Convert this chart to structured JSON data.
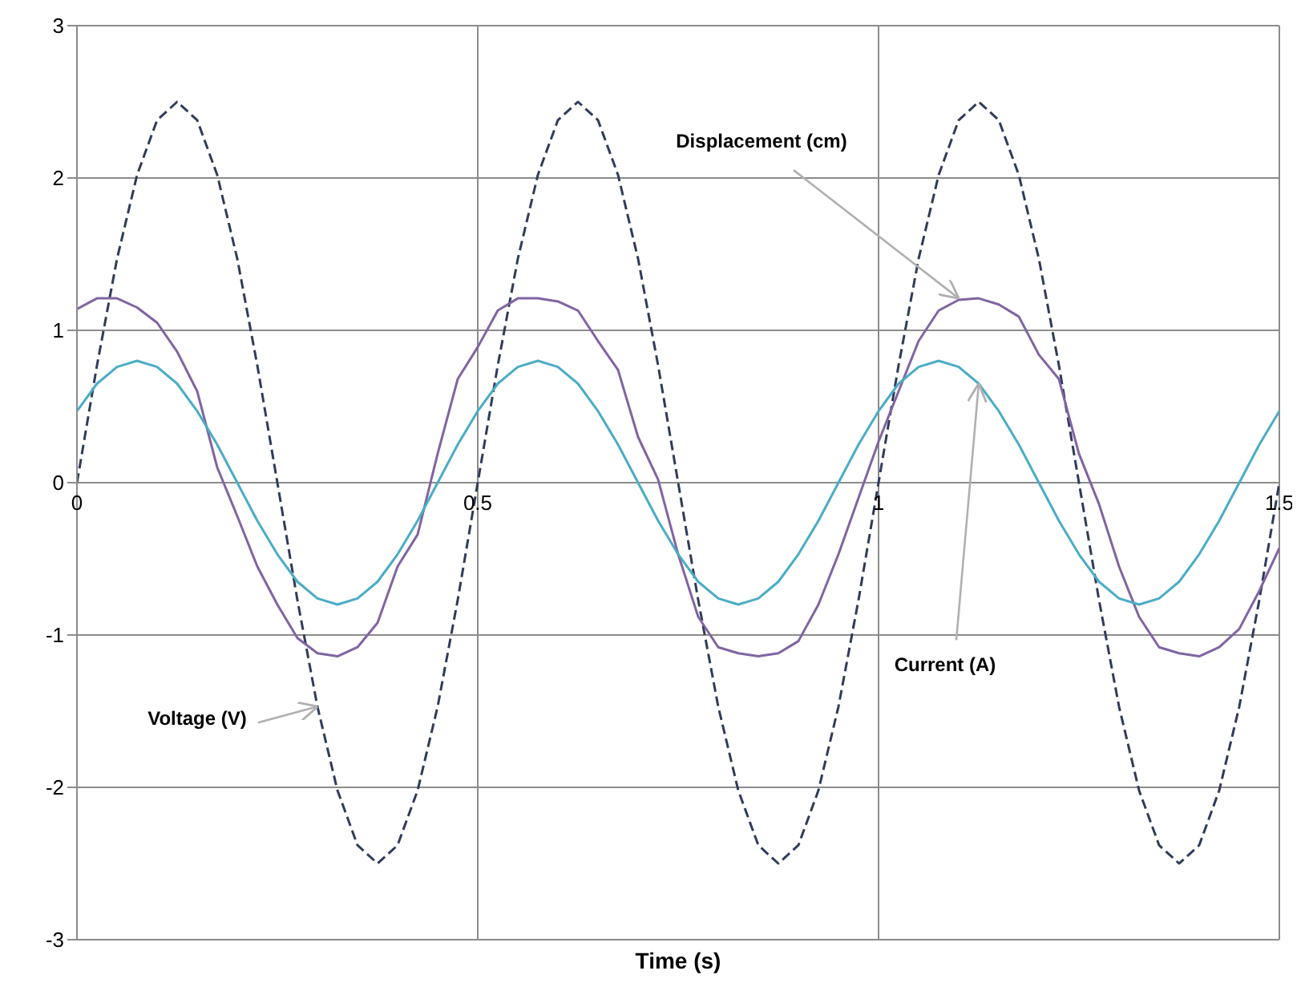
{
  "chart_data": {
    "type": "line",
    "xlabel": "Time (s)",
    "x": [
      0,
      0.025,
      0.05,
      0.075,
      0.1,
      0.125,
      0.15,
      0.175,
      0.2,
      0.225,
      0.25,
      0.275,
      0.3,
      0.325,
      0.35,
      0.375,
      0.4,
      0.425,
      0.45,
      0.475,
      0.5,
      0.525,
      0.55,
      0.575,
      0.6,
      0.625,
      0.65,
      0.675,
      0.7,
      0.725,
      0.75,
      0.775,
      0.8,
      0.825,
      0.85,
      0.875,
      0.9,
      0.925,
      0.95,
      0.975,
      1,
      1.025,
      1.05,
      1.075,
      1.1,
      1.125,
      1.15,
      1.175,
      1.2,
      1.225,
      1.25,
      1.275,
      1.3,
      1.325,
      1.35,
      1.375,
      1.4,
      1.425,
      1.45,
      1.475,
      1.5
    ],
    "series": [
      {
        "color": "#2f3c5a",
        "line_style": "dashed",
        "values": [
          0,
          0.77,
          1.47,
          2.02,
          2.38,
          2.5,
          2.38,
          2.02,
          1.47,
          0.77,
          0,
          -0.77,
          -1.47,
          -2.02,
          -2.38,
          -2.5,
          -2.38,
          -2.02,
          -1.47,
          -0.77,
          0,
          0.77,
          1.47,
          2.02,
          2.38,
          2.5,
          2.38,
          2.02,
          1.47,
          0.77,
          0,
          -0.77,
          -1.47,
          -2.02,
          -2.38,
          -2.5,
          -2.38,
          -2.02,
          -1.47,
          -0.77,
          0,
          0.77,
          1.47,
          2.02,
          2.38,
          2.5,
          2.38,
          2.02,
          1.47,
          0.77,
          0,
          -0.77,
          -1.47,
          -2.02,
          -2.38,
          -2.5,
          -2.38,
          -2.02,
          -1.47,
          -0.77,
          0
        ]
      },
      {
        "color": "#8064a2",
        "line_style": "solid",
        "values": [
          1.14,
          1.21,
          1.21,
          1.15,
          1.05,
          0.86,
          0.6,
          0.1,
          -0.22,
          -0.55,
          -0.8,
          -1.02,
          -1.12,
          -1.14,
          -1.08,
          -0.92,
          -0.55,
          -0.34,
          0.19,
          0.68,
          0.89,
          1.13,
          1.21,
          1.21,
          1.19,
          1.13,
          0.93,
          0.74,
          0.3,
          0.02,
          -0.47,
          -0.88,
          -1.08,
          -1.12,
          -1.14,
          -1.12,
          -1.04,
          -0.8,
          -0.47,
          -0.1,
          0.27,
          0.6,
          0.93,
          1.13,
          1.2,
          1.21,
          1.17,
          1.09,
          0.84,
          0.68,
          0.19,
          -0.14,
          -0.55,
          -0.88,
          -1.08,
          -1.12,
          -1.14,
          -1.08,
          -0.96,
          -0.71,
          -0.43
        ]
      },
      {
        "color": "#4bacc6",
        "line_style": "solid",
        "values": [
          0.47,
          0.65,
          0.76,
          0.8,
          0.76,
          0.65,
          0.47,
          0.25,
          0,
          -0.25,
          -0.47,
          -0.65,
          -0.76,
          -0.8,
          -0.76,
          -0.65,
          -0.47,
          -0.25,
          0,
          0.25,
          0.47,
          0.65,
          0.76,
          0.8,
          0.76,
          0.65,
          0.47,
          0.25,
          0,
          -0.25,
          -0.47,
          -0.65,
          -0.76,
          -0.8,
          -0.76,
          -0.65,
          -0.47,
          -0.25,
          0,
          0.25,
          0.47,
          0.65,
          0.76,
          0.8,
          0.76,
          0.65,
          0.47,
          0.25,
          0,
          -0.25,
          -0.47,
          -0.65,
          -0.76,
          -0.8,
          -0.76,
          -0.65,
          -0.47,
          -0.25,
          0,
          0.25,
          0.47
        ]
      }
    ],
    "xlim": [
      0,
      1.5
    ],
    "xticks": [
      0,
      0.5,
      1,
      1.5
    ],
    "ylim": [
      -3,
      3
    ],
    "yticks": [
      -3,
      -2,
      -1,
      0,
      1,
      2,
      3
    ],
    "grid": true,
    "annotations": [
      {
        "text": "Displacement (cm)",
        "x": 1.1,
        "y": 1.21
      },
      {
        "text": "Current (A)",
        "x": 1.125,
        "y": 0.65
      },
      {
        "text": "Voltage (V)",
        "x": 0.3,
        "y": -1.47
      }
    ]
  }
}
